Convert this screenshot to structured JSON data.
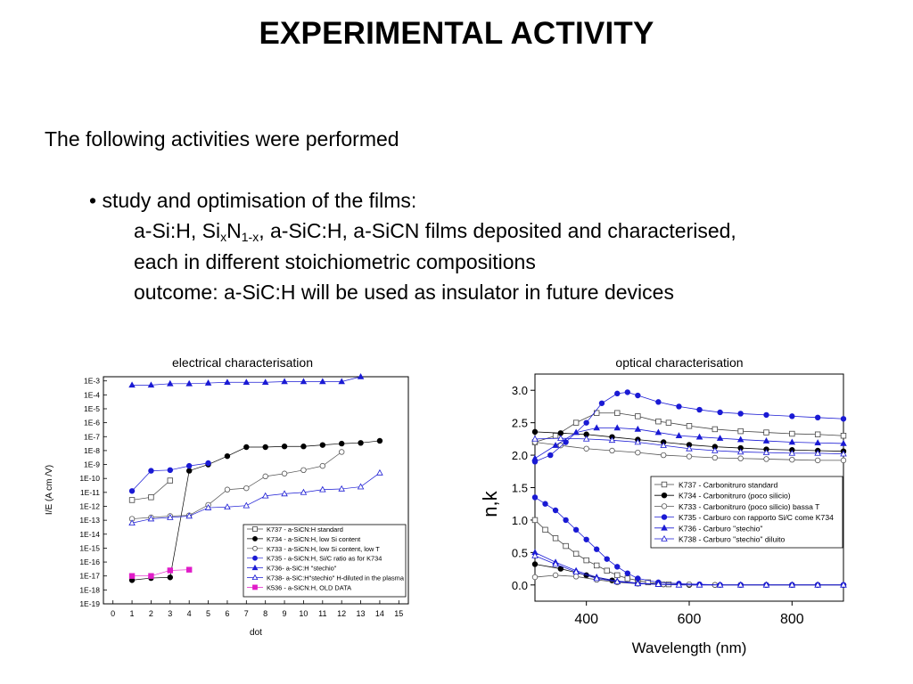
{
  "slide": {
    "title": "EXPERIMENTAL ACTIVITY",
    "intro": "The following activities were performed",
    "bullet": "• study and optimisation of the films:",
    "line1_parts": [
      "a-Si:H, Si",
      "x",
      "N",
      "1-x",
      ", a-SiC:H, a-SiCN films deposited and characterised,"
    ],
    "line2": "each in different stoichiometric compositions",
    "line3": "outcome: a-SiC:H will be used as insulator in future devices"
  },
  "chart_data": [
    {
      "type": "scatter",
      "title": "electrical characterisation",
      "xlabel": "dot",
      "ylabel": "I/E  (A cm /V)",
      "xlim": [
        -0.5,
        15.5
      ],
      "xticks": [
        0,
        1,
        2,
        3,
        4,
        5,
        6,
        7,
        8,
        9,
        10,
        11,
        12,
        13,
        14,
        15
      ],
      "ylog_exponents": [
        -3,
        -4,
        -5,
        -6,
        -7,
        -8,
        -9,
        -10,
        -11,
        -12,
        -13,
        -14,
        -15,
        -16,
        -17,
        -18,
        -19
      ],
      "ytick_labels": [
        "1E-3",
        "1E-4",
        "1E-5",
        "1E-6",
        "1E-7",
        "1E-8",
        "1E-9",
        "1E-10",
        "1E-11",
        "1E-12",
        "1E-13",
        "1E-14",
        "1E-15",
        "1E-16",
        "1E-17",
        "1E-18",
        "1E-19"
      ],
      "legend_position": "bottom-right",
      "series": [
        {
          "name": "K737 - a-SiCN:H standard",
          "marker": "square-open",
          "color": "#444444",
          "x": [
            1,
            2,
            3
          ],
          "y_exp": [
            -11.55,
            -11.35,
            -10.15
          ]
        },
        {
          "name": "K734 - a-SiCN:H, low Si content",
          "marker": "circle-filled",
          "color": "#000000",
          "x": [
            1,
            2,
            3,
            4,
            5,
            6,
            7,
            8,
            9,
            10,
            11,
            12,
            13,
            14
          ],
          "y_exp": [
            -17.3,
            -17.15,
            -17.1,
            -9.45,
            -9.0,
            -8.4,
            -7.75,
            -7.75,
            -7.7,
            -7.7,
            -7.6,
            -7.5,
            -7.45,
            -7.3
          ]
        },
        {
          "name": "K733 - a-SiCN:H, low Si content, low T",
          "marker": "circle-open",
          "color": "#555555",
          "x": [
            1,
            2,
            3,
            4,
            5,
            6,
            7,
            8,
            9,
            10,
            11,
            12
          ],
          "y_exp": [
            -12.9,
            -12.8,
            -12.7,
            -12.65,
            -11.9,
            -10.8,
            -10.7,
            -9.85,
            -9.65,
            -9.4,
            -9.1,
            -8.1
          ]
        },
        {
          "name": "K735 - a-SiCN:H, Si/C ratio as for K734",
          "marker": "circle-filled",
          "color": "#1a1ad4",
          "x": [
            1,
            2,
            3,
            4,
            5
          ],
          "y_exp": [
            -10.9,
            -9.45,
            -9.4,
            -9.1,
            -8.9
          ]
        },
        {
          "name": "K736- a-SiC:H \"stechio\"",
          "marker": "triangle-filled",
          "color": "#1a1ad4",
          "x": [
            1,
            2,
            3,
            4,
            5,
            6,
            7,
            8,
            9,
            10,
            11,
            12,
            13
          ],
          "y_exp": [
            -3.3,
            -3.3,
            -3.2,
            -3.2,
            -3.15,
            -3.1,
            -3.1,
            -3.1,
            -3.05,
            -3.05,
            -3.05,
            -3.05,
            -2.7
          ]
        },
        {
          "name": "K738- a-SiC:H\"stechio\" H-diluted in the plasma",
          "marker": "triangle-open",
          "color": "#1a1ad4",
          "x": [
            1,
            2,
            3,
            4,
            5,
            6,
            7,
            8,
            9,
            10,
            11,
            12,
            13,
            14
          ],
          "y_exp": [
            -13.2,
            -12.9,
            -12.8,
            -12.7,
            -12.1,
            -12.05,
            -11.95,
            -11.25,
            -11.1,
            -11.0,
            -10.8,
            -10.75,
            -10.6,
            -9.6
          ]
        },
        {
          "name": "K536 - a-SiCN:H,  OLD DATA",
          "marker": "square-filled",
          "color": "#e01cc8",
          "x": [
            1,
            2,
            3,
            4
          ],
          "y_exp": [
            -17.0,
            -17.0,
            -16.6,
            -16.55
          ]
        }
      ]
    },
    {
      "type": "scatter",
      "title": "optical characterisation",
      "xlabel": "Wavelength (nm)",
      "ylabel": "n,k",
      "xlim": [
        300,
        900
      ],
      "ylim": [
        -0.25,
        3.25
      ],
      "xticks": [
        400,
        600,
        800
      ],
      "yticks": [
        0.0,
        0.5,
        1.0,
        1.5,
        2.0,
        2.5,
        3.0
      ],
      "ytick_labels": [
        "0.0",
        "0.5",
        "1.0",
        "1.5",
        "2.0",
        "2.5",
        "3.0"
      ],
      "legend_position": "right",
      "series": [
        {
          "name": "K737 - Carbonitruro standard",
          "marker": "square-open",
          "color": "#444444",
          "n": {
            "x": [
              300,
              340,
              380,
              420,
              460,
              500,
              540,
              560,
              600,
              650,
              700,
              750,
              800,
              850,
              900
            ],
            "y": [
              2.2,
              2.3,
              2.5,
              2.65,
              2.65,
              2.6,
              2.52,
              2.5,
              2.45,
              2.4,
              2.37,
              2.35,
              2.33,
              2.32,
              2.3
            ]
          },
          "k": {
            "x": [
              300,
              320,
              340,
              360,
              380,
              400,
              420,
              440,
              460,
              480,
              500,
              520,
              540,
              560
            ],
            "y": [
              1.0,
              0.85,
              0.72,
              0.6,
              0.48,
              0.38,
              0.3,
              0.22,
              0.15,
              0.1,
              0.07,
              0.04,
              0.02,
              0.01
            ]
          }
        },
        {
          "name": "K734 - Carbonitruro (poco silicio)",
          "marker": "circle-filled",
          "color": "#000000",
          "n": {
            "x": [
              300,
              350,
              400,
              450,
              500,
              550,
              600,
              650,
              700,
              750,
              800,
              850,
              900
            ],
            "y": [
              2.36,
              2.34,
              2.32,
              2.28,
              2.24,
              2.2,
              2.16,
              2.13,
              2.11,
              2.09,
              2.08,
              2.07,
              2.06
            ]
          },
          "k": {
            "x": [
              300,
              350,
              400,
              450,
              500,
              550,
              600,
              650,
              700,
              750,
              800,
              850,
              900
            ],
            "y": [
              0.32,
              0.25,
              0.15,
              0.07,
              0.02,
              0.01,
              0.0,
              0.0,
              0.0,
              0.0,
              0.0,
              0.0,
              0.0
            ]
          }
        },
        {
          "name": "K733 - Carbonitruro (poco silicio) bassa T",
          "marker": "circle-open",
          "color": "#555555",
          "n": {
            "x": [
              300,
              350,
              400,
              450,
              500,
              550,
              600,
              650,
              700,
              750,
              800,
              850,
              900
            ],
            "y": [
              2.2,
              2.15,
              2.1,
              2.07,
              2.04,
              2.0,
              1.98,
              1.96,
              1.95,
              1.94,
              1.93,
              1.92,
              1.92
            ]
          },
          "k": {
            "x": [
              300,
              340,
              380,
              420,
              460,
              500,
              550,
              600,
              650,
              700,
              750,
              800,
              850,
              900
            ],
            "y": [
              0.12,
              0.15,
              0.13,
              0.08,
              0.04,
              0.02,
              0.01,
              0.01,
              0.0,
              0.0,
              0.0,
              0.0,
              0.0,
              0.0
            ]
          }
        },
        {
          "name": "K735 - Carburo con rapporto Si/C come K734",
          "marker": "circle-filled",
          "color": "#1a1ad4",
          "n": {
            "x": [
              300,
              330,
              360,
              400,
              430,
              460,
              480,
              500,
              540,
              580,
              620,
              660,
              700,
              750,
              800,
              850,
              900
            ],
            "y": [
              1.9,
              2.0,
              2.2,
              2.5,
              2.8,
              2.95,
              2.97,
              2.92,
              2.82,
              2.75,
              2.7,
              2.66,
              2.64,
              2.62,
              2.6,
              2.58,
              2.56
            ]
          },
          "k": {
            "x": [
              300,
              320,
              340,
              360,
              380,
              400,
              420,
              440,
              460,
              480,
              500,
              540,
              580,
              620,
              660,
              700,
              750,
              800,
              850,
              900
            ],
            "y": [
              1.35,
              1.25,
              1.15,
              1.0,
              0.85,
              0.7,
              0.55,
              0.4,
              0.28,
              0.18,
              0.1,
              0.04,
              0.02,
              0.01,
              0.0,
              0.0,
              0.0,
              0.0,
              0.0,
              0.0
            ]
          }
        },
        {
          "name": "K736 - Carburo \"stechio\"",
          "marker": "triangle-filled",
          "color": "#1a1ad4",
          "n": {
            "x": [
              300,
              340,
              380,
              420,
              460,
              500,
              540,
              580,
              620,
              660,
              700,
              750,
              800,
              850,
              900
            ],
            "y": [
              1.95,
              2.15,
              2.35,
              2.42,
              2.42,
              2.4,
              2.35,
              2.3,
              2.28,
              2.26,
              2.24,
              2.22,
              2.2,
              2.19,
              2.18
            ]
          },
          "k": {
            "x": [
              300,
              340,
              380,
              420,
              460,
              500,
              540,
              580,
              620,
              660,
              700,
              750,
              800,
              850,
              900
            ],
            "y": [
              0.5,
              0.35,
              0.22,
              0.12,
              0.06,
              0.03,
              0.01,
              0.0,
              0.0,
              0.0,
              0.0,
              0.0,
              0.0,
              0.0,
              0.0
            ]
          }
        },
        {
          "name": "K738 - Carburo \"stechio\" diluito",
          "marker": "triangle-open",
          "color": "#1a1ad4",
          "n": {
            "x": [
              300,
              350,
              400,
              450,
              500,
              550,
              600,
              650,
              700,
              750,
              800,
              850,
              900
            ],
            "y": [
              2.25,
              2.26,
              2.25,
              2.23,
              2.2,
              2.15,
              2.1,
              2.07,
              2.05,
              2.04,
              2.03,
              2.03,
              2.02
            ]
          },
          "k": {
            "x": [
              300,
              340,
              380,
              420,
              460,
              500,
              540,
              580,
              620,
              660,
              700,
              750,
              800,
              850,
              900
            ],
            "y": [
              0.45,
              0.32,
              0.2,
              0.1,
              0.05,
              0.02,
              0.01,
              0.0,
              0.0,
              0.0,
              0.0,
              0.0,
              0.0,
              0.0,
              0.0
            ]
          }
        }
      ]
    }
  ]
}
